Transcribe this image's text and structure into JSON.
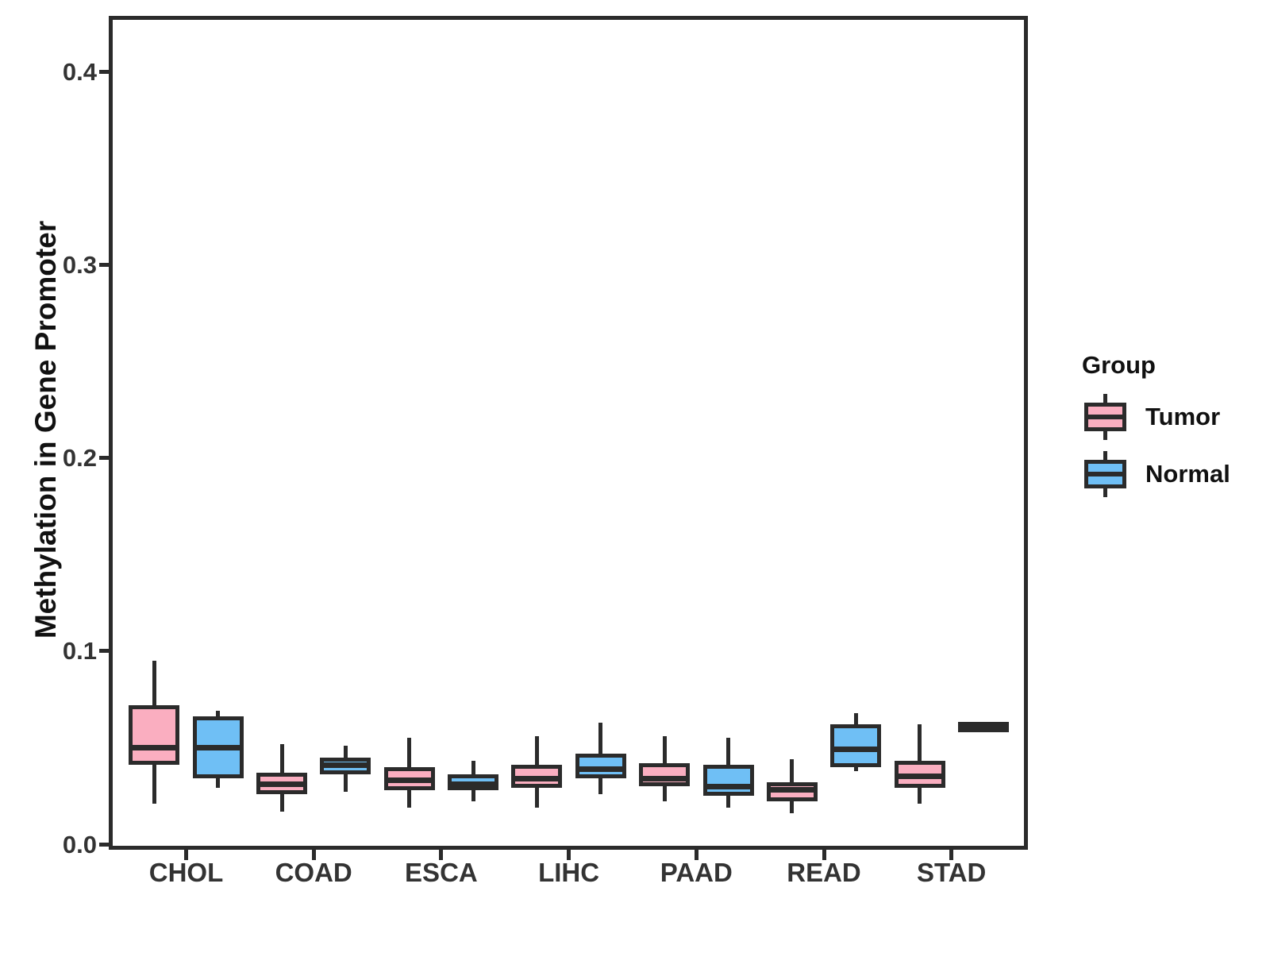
{
  "y_axis": {
    "title": "Methylation in Gene Promoter",
    "ticks": [
      {
        "label": "0.0",
        "value": 0.0
      },
      {
        "label": "0.1",
        "value": 0.1
      },
      {
        "label": "0.2",
        "value": 0.2
      },
      {
        "label": "0.3",
        "value": 0.3
      },
      {
        "label": "0.4",
        "value": 0.4
      }
    ]
  },
  "x_axis": {
    "categories": [
      "CHOL",
      "COAD",
      "ESCA",
      "LIHC",
      "PAAD",
      "READ",
      "STAD"
    ]
  },
  "legend": {
    "title": "Group",
    "items": [
      {
        "label": "Tumor",
        "color": "#FAAEC0"
      },
      {
        "label": "Normal",
        "color": "#6FBFF5"
      }
    ]
  },
  "colors": {
    "tumor_fill": "#FAAEC0",
    "normal_fill": "#6FBFF5",
    "line": "#2B2B2B",
    "text": "#333333"
  },
  "chart_data": {
    "type": "boxplot",
    "title": "",
    "xlabel": "",
    "ylabel": "Methylation in Gene Promoter",
    "ylim": [
      0,
      0.43
    ],
    "grid": false,
    "legend_position": "right",
    "categories": [
      "CHOL",
      "COAD",
      "ESCA",
      "LIHC",
      "PAAD",
      "READ",
      "STAD"
    ],
    "stat_order": [
      "min",
      "q1",
      "median",
      "q3",
      "max"
    ],
    "series": [
      {
        "name": "Tumor",
        "color": "#FAAEC0",
        "boxes": [
          [
            0.021,
            0.041,
            0.05,
            0.072,
            0.095
          ],
          [
            0.017,
            0.026,
            0.031,
            0.037,
            0.052
          ],
          [
            0.019,
            0.028,
            0.033,
            0.04,
            0.055
          ],
          [
            0.019,
            0.029,
            0.034,
            0.041,
            0.056
          ],
          [
            0.022,
            0.03,
            0.034,
            0.042,
            0.056
          ],
          [
            0.016,
            0.022,
            0.028,
            0.032,
            0.044
          ],
          [
            0.021,
            0.029,
            0.035,
            0.043,
            0.062
          ]
        ]
      },
      {
        "name": "Normal",
        "color": "#6FBFF5",
        "boxes": [
          [
            0.029,
            0.034,
            0.05,
            0.066,
            0.069
          ],
          [
            0.027,
            0.036,
            0.041,
            0.045,
            0.051
          ],
          [
            0.022,
            0.028,
            0.031,
            0.036,
            0.043
          ],
          [
            0.026,
            0.034,
            0.039,
            0.047,
            0.063
          ],
          [
            0.019,
            0.025,
            0.03,
            0.041,
            0.055
          ],
          [
            0.038,
            0.04,
            0.049,
            0.062,
            0.068
          ],
          [
            0.062,
            0.062,
            0.062,
            0.062,
            0.062
          ]
        ]
      }
    ]
  }
}
